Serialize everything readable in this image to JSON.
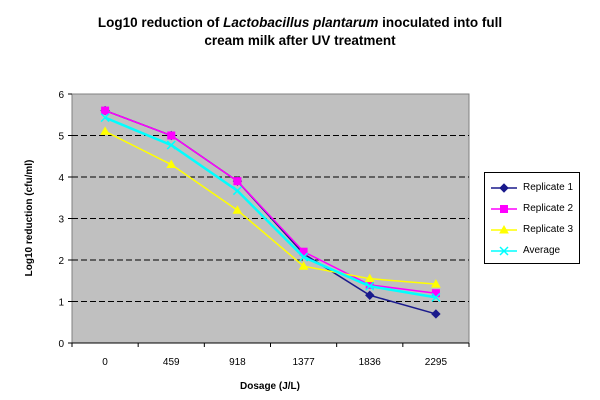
{
  "chart_data": {
    "type": "line",
    "title_prefix": "Log10 reduction of ",
    "title_italic": "Lactobacillus plantarum",
    "title_suffix": " inoculated into full",
    "title_line2": "cream milk after UV treatment",
    "xlabel": "Dosage (J/L)",
    "ylabel": "Log10 reduction (cfu/ml)",
    "categories": [
      "0",
      "459",
      "918",
      "1377",
      "1836",
      "2295"
    ],
    "ylim": [
      0,
      6
    ],
    "yticks": [
      "0",
      "1",
      "2",
      "3",
      "4",
      "5",
      "6"
    ],
    "grid": true,
    "legend_position": "right",
    "series": [
      {
        "name": "Replicate 1",
        "color": "#1a1a8c",
        "marker": "diamond",
        "values": [
          5.6,
          5.0,
          3.9,
          2.15,
          1.15,
          0.7
        ]
      },
      {
        "name": "Replicate 2",
        "color": "#ff00ff",
        "marker": "square",
        "values": [
          5.6,
          5.0,
          3.9,
          2.2,
          1.4,
          1.2
        ]
      },
      {
        "name": "Replicate 3",
        "color": "#ffff00",
        "marker": "triangle",
        "values": [
          5.1,
          4.3,
          3.2,
          1.85,
          1.55,
          1.42
        ]
      },
      {
        "name": "Average",
        "color": "#00ffff",
        "marker": "x",
        "values": [
          5.43,
          4.77,
          3.67,
          2.07,
          1.37,
          1.1
        ]
      }
    ]
  }
}
